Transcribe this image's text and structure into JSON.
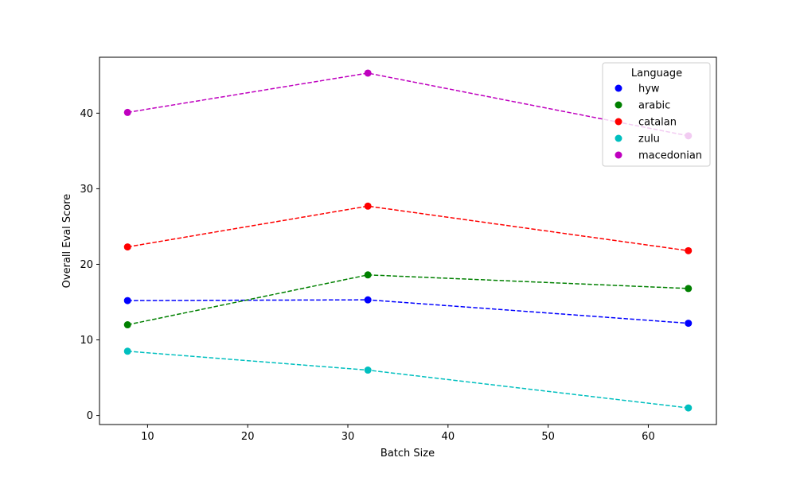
{
  "chart_data": {
    "type": "line",
    "title": "",
    "xlabel": "Batch Size",
    "ylabel": "Overall Eval Score",
    "xlim": [
      5.2,
      66.8
    ],
    "ylim": [
      -1.2,
      47.4
    ],
    "xticks": [
      10,
      20,
      30,
      40,
      50,
      60
    ],
    "yticks": [
      0,
      10,
      20,
      30,
      40
    ],
    "x": [
      8,
      32,
      64
    ],
    "legend": {
      "title": "Language",
      "placement": "upper right"
    },
    "line_style": "dashed",
    "series": [
      {
        "name": "hyw",
        "color": "#0000ff",
        "values": [
          15.2,
          15.3,
          12.2
        ]
      },
      {
        "name": "arabic",
        "color": "#008000",
        "values": [
          12.0,
          18.6,
          16.8
        ]
      },
      {
        "name": "catalan",
        "color": "#ff0000",
        "values": [
          22.3,
          27.7,
          21.8
        ]
      },
      {
        "name": "zulu",
        "color": "#00bfbf",
        "values": [
          8.5,
          6.0,
          1.0
        ]
      },
      {
        "name": "macedonian",
        "color": "#bf00bf",
        "values": [
          40.1,
          45.3,
          37.0
        ]
      }
    ]
  }
}
